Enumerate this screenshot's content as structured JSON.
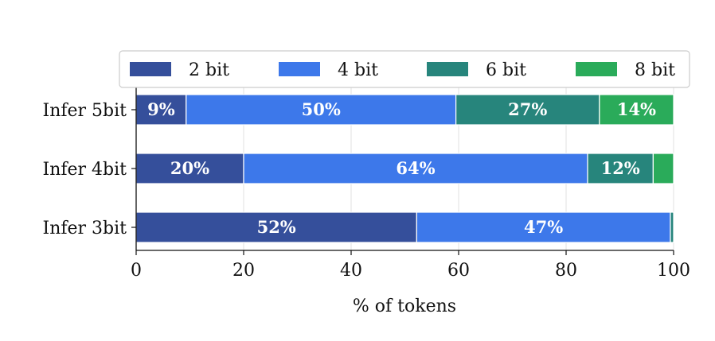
{
  "chart_data": {
    "type": "bar",
    "orientation": "horizontal",
    "stacked": true,
    "title": "",
    "xlabel": "% of tokens",
    "ylabel": "",
    "xlim": [
      0,
      100
    ],
    "xticks": [
      0,
      20,
      40,
      60,
      80,
      100
    ],
    "grid": "vertical",
    "legend_position": "top",
    "categories": [
      "Infer 5bit",
      "Infer 4bit",
      "Infer 3bit"
    ],
    "series": [
      {
        "name": "2 bit",
        "color": "#354f9b",
        "values": [
          9.3,
          20,
          52.2
        ],
        "labels": [
          "9%",
          "20%",
          "52%"
        ]
      },
      {
        "name": "4 bit",
        "color": "#3d78ea",
        "values": [
          50.2,
          64,
          47.2
        ],
        "labels": [
          "50%",
          "64%",
          "47%"
        ]
      },
      {
        "name": "6 bit",
        "color": "#27857c",
        "values": [
          26.7,
          12.2,
          0.6
        ],
        "labels": [
          "27%",
          "12%",
          ""
        ]
      },
      {
        "name": "8 bit",
        "color": "#2aab5a",
        "values": [
          13.8,
          3.8,
          0
        ],
        "labels": [
          "14%",
          "",
          ""
        ]
      }
    ]
  }
}
